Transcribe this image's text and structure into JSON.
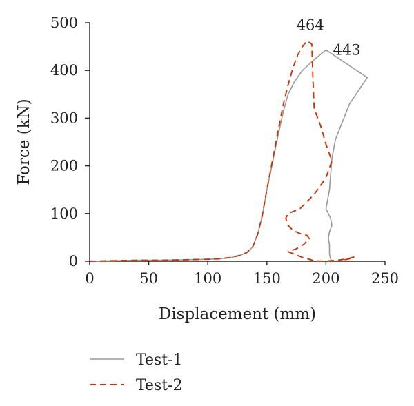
{
  "chart_data": {
    "type": "line",
    "title": "",
    "xlabel": "Displacement (mm)",
    "ylabel": "Force (kN)",
    "xlim": [
      0,
      250
    ],
    "ylim": [
      0,
      500
    ],
    "xticks": [
      0,
      50,
      100,
      150,
      200,
      250
    ],
    "yticks": [
      0,
      100,
      200,
      300,
      400,
      500
    ],
    "grid": false,
    "legend_position": "bottom-left",
    "series": [
      {
        "name": "Test-1",
        "color": "#999999",
        "dash": "solid",
        "points": [
          [
            0,
            0
          ],
          [
            20,
            1
          ],
          [
            40,
            2
          ],
          [
            60,
            2
          ],
          [
            80,
            3
          ],
          [
            100,
            4
          ],
          [
            110,
            5
          ],
          [
            120,
            8
          ],
          [
            127,
            12
          ],
          [
            133,
            18
          ],
          [
            138,
            30
          ],
          [
            142,
            55
          ],
          [
            146,
            95
          ],
          [
            150,
            150
          ],
          [
            155,
            210
          ],
          [
            160,
            270
          ],
          [
            164,
            315
          ],
          [
            168,
            350
          ],
          [
            173,
            375
          ],
          [
            180,
            400
          ],
          [
            188,
            418
          ],
          [
            196,
            435
          ],
          [
            200,
            443
          ],
          [
            235,
            385
          ],
          [
            220,
            330
          ],
          [
            208,
            255
          ],
          [
            205,
            215
          ],
          [
            203,
            150
          ],
          [
            200,
            110
          ],
          [
            204,
            90
          ],
          [
            205,
            75
          ],
          [
            203,
            62
          ],
          [
            202,
            48
          ],
          [
            203,
            35
          ],
          [
            203,
            15
          ],
          [
            204,
            5
          ],
          [
            205,
            0
          ]
        ]
      },
      {
        "name": "Test-2",
        "color": "#cc3300",
        "dash": "dashed",
        "points": [
          [
            0,
            0
          ],
          [
            20,
            1
          ],
          [
            40,
            2
          ],
          [
            60,
            2
          ],
          [
            80,
            3
          ],
          [
            100,
            4
          ],
          [
            110,
            5
          ],
          [
            120,
            8
          ],
          [
            127,
            12
          ],
          [
            133,
            18
          ],
          [
            138,
            30
          ],
          [
            142,
            55
          ],
          [
            146,
            95
          ],
          [
            150,
            150
          ],
          [
            155,
            215
          ],
          [
            160,
            280
          ],
          [
            164,
            330
          ],
          [
            168,
            370
          ],
          [
            172,
            405
          ],
          [
            176,
            432
          ],
          [
            180,
            450
          ],
          [
            184,
            462
          ],
          [
            188,
            455
          ],
          [
            189,
            380
          ],
          [
            190,
            320
          ],
          [
            196,
            280
          ],
          [
            200,
            245
          ],
          [
            205,
            210
          ],
          [
            200,
            175
          ],
          [
            190,
            140
          ],
          [
            178,
            110
          ],
          [
            168,
            100
          ],
          [
            166,
            90
          ],
          [
            168,
            75
          ],
          [
            172,
            65
          ],
          [
            178,
            58
          ],
          [
            184,
            54
          ],
          [
            186,
            47
          ],
          [
            181,
            35
          ],
          [
            175,
            26
          ],
          [
            168,
            20
          ],
          [
            174,
            14
          ],
          [
            180,
            8
          ],
          [
            186,
            4
          ],
          [
            190,
            1
          ],
          [
            198,
            0
          ],
          [
            210,
            2
          ],
          [
            218,
            5
          ],
          [
            224,
            9
          ],
          [
            220,
            5
          ],
          [
            212,
            1
          ]
        ]
      }
    ],
    "annotations": [
      {
        "text": "464",
        "x": 175,
        "y": 495
      },
      {
        "text": "443",
        "x": 206,
        "y": 443
      }
    ]
  }
}
